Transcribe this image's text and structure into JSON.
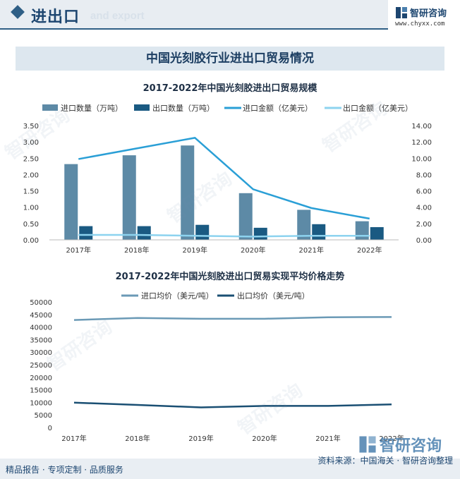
{
  "header": {
    "title": "进出口",
    "subtitle_en": "and export",
    "brand_name": "智研咨询",
    "brand_url": "www.chyxx.com"
  },
  "banner": {
    "title": "中国光刻胶行业进出口贸易情况"
  },
  "footer": {
    "left": "精品报告 · 专项定制 · 品质服务",
    "right": "资料来源：中国海关 · 智研咨询整理",
    "big_brand": "智研咨询"
  },
  "colors": {
    "import_qty": "#5d8aa6",
    "export_qty": "#1a5a82",
    "import_amt": "#2a9fd6",
    "export_amt": "#8dd3ef",
    "import_price": "#6b9ab6",
    "export_price": "#1a4f73"
  },
  "chart_data": [
    {
      "type": "bar",
      "title": "2017-2022年中国光刻胶进出口贸易规模",
      "categories": [
        "2017年",
        "2018年",
        "2019年",
        "2020年",
        "2021年",
        "2022年"
      ],
      "series": [
        {
          "name": "进口数量（万吨）",
          "kind": "bar",
          "axis": "left",
          "values": [
            2.32,
            2.59,
            2.89,
            1.43,
            0.92,
            0.57
          ]
        },
        {
          "name": "出口数量（万吨）",
          "kind": "bar",
          "axis": "left",
          "values": [
            0.42,
            0.42,
            0.46,
            0.37,
            0.48,
            0.39
          ]
        },
        {
          "name": "进口金额（亿美元）",
          "kind": "line",
          "axis": "right",
          "values": [
            9.9,
            11.2,
            12.5,
            6.2,
            3.9,
            2.6
          ]
        },
        {
          "name": "出口金额（亿美元）",
          "kind": "line",
          "axis": "right",
          "values": [
            0.6,
            0.6,
            0.5,
            0.4,
            0.5,
            0.5
          ]
        }
      ],
      "y_left": {
        "min": 0,
        "max": 3.5,
        "ticks": [
          "0.00",
          "0.50",
          "1.00",
          "1.50",
          "2.00",
          "2.50",
          "3.00",
          "3.50"
        ]
      },
      "y_right": {
        "min": 0,
        "max": 14,
        "ticks": [
          "0.00",
          "2.00",
          "4.00",
          "6.00",
          "8.00",
          "10.00",
          "12.00",
          "14.00"
        ]
      },
      "legend": "top"
    },
    {
      "type": "line",
      "title": "2017-2022年中国光刻胶进出口贸易实现平均价格走势",
      "categories": [
        "2017年",
        "2018年",
        "2019年",
        "2020年",
        "2021年",
        "2022年"
      ],
      "series": [
        {
          "name": "进口均价（美元/吨）",
          "values": [
            42800,
            43600,
            43300,
            43300,
            43900,
            44000
          ]
        },
        {
          "name": "出口均价（美元/吨）",
          "values": [
            9900,
            9000,
            8000,
            8600,
            8600,
            9200
          ]
        }
      ],
      "y": {
        "min": 0,
        "max": 50000,
        "ticks": [
          "0",
          "5000",
          "10000",
          "15000",
          "20000",
          "25000",
          "30000",
          "35000",
          "40000",
          "45000",
          "50000"
        ]
      },
      "legend": "top"
    }
  ]
}
